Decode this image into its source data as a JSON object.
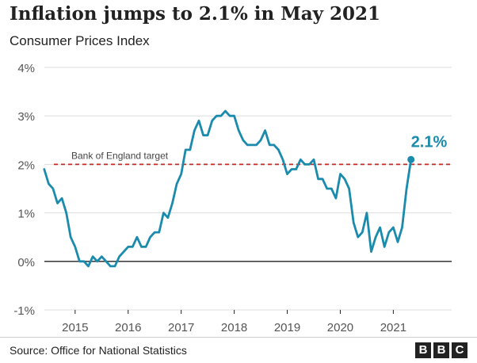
{
  "header": {
    "title": "Inflation jumps to 2.1% in May 2021",
    "subtitle": "Consumer Prices Index"
  },
  "footer": {
    "source": "Source: Office for National Statistics",
    "logo_letters": [
      "B",
      "B",
      "C"
    ]
  },
  "colors": {
    "line": "#1a8bac",
    "target": "#c62828",
    "grid": "#dddddd",
    "axis": "#222222",
    "text": "#222222",
    "tick_text": "#555555"
  },
  "chart_data": {
    "type": "line",
    "title": "Inflation jumps to 2.1% in May 2021",
    "subtitle": "Consumer Prices Index",
    "xlabel": "",
    "ylabel": "",
    "ylim": [
      -1,
      4
    ],
    "xlim": [
      2014.42,
      2022.1
    ],
    "grid": true,
    "yticks": [
      -1,
      0,
      1,
      2,
      3,
      4
    ],
    "ytick_labels": [
      "-1%",
      "0%",
      "1%",
      "2%",
      "3%",
      "4%"
    ],
    "xticks": [
      2015,
      2016,
      2017,
      2018,
      2019,
      2020,
      2021
    ],
    "xtick_labels": [
      "2015",
      "2016",
      "2017",
      "2018",
      "2019",
      "2020",
      "2021"
    ],
    "reference_line": {
      "y": 2,
      "label": "Bank of England target",
      "style": "dashed"
    },
    "end_label": "2.1%",
    "series": [
      {
        "x": [
          "2014-06",
          "2014-07",
          "2014-08",
          "2014-09",
          "2014-10",
          "2014-11",
          "2014-12",
          "2015-01",
          "2015-02",
          "2015-03",
          "2015-04",
          "2015-05",
          "2015-06",
          "2015-07",
          "2015-08",
          "2015-09",
          "2015-10",
          "2015-11",
          "2015-12",
          "2016-01",
          "2016-02",
          "2016-03",
          "2016-04",
          "2016-05",
          "2016-06",
          "2016-07",
          "2016-08",
          "2016-09",
          "2016-10",
          "2016-11",
          "2016-12",
          "2017-01",
          "2017-02",
          "2017-03",
          "2017-04",
          "2017-05",
          "2017-06",
          "2017-07",
          "2017-08",
          "2017-09",
          "2017-10",
          "2017-11",
          "2017-12",
          "2018-01",
          "2018-02",
          "2018-03",
          "2018-04",
          "2018-05",
          "2018-06",
          "2018-07",
          "2018-08",
          "2018-09",
          "2018-10",
          "2018-11",
          "2018-12",
          "2019-01",
          "2019-02",
          "2019-03",
          "2019-04",
          "2019-05",
          "2019-06",
          "2019-07",
          "2019-08",
          "2019-09",
          "2019-10",
          "2019-11",
          "2019-12",
          "2020-01",
          "2020-02",
          "2020-03",
          "2020-04",
          "2020-05",
          "2020-06",
          "2020-07",
          "2020-08",
          "2020-09",
          "2020-10",
          "2020-11",
          "2020-12",
          "2021-01",
          "2021-02",
          "2021-03",
          "2021-04",
          "2021-05"
        ],
        "values": [
          1.9,
          1.6,
          1.5,
          1.2,
          1.3,
          1.0,
          0.5,
          0.3,
          0.0,
          0.0,
          -0.1,
          0.1,
          0.0,
          0.1,
          0.0,
          -0.1,
          -0.1,
          0.1,
          0.2,
          0.3,
          0.3,
          0.5,
          0.3,
          0.3,
          0.5,
          0.6,
          0.6,
          1.0,
          0.9,
          1.2,
          1.6,
          1.8,
          2.3,
          2.3,
          2.7,
          2.9,
          2.6,
          2.6,
          2.9,
          3.0,
          3.0,
          3.1,
          3.0,
          3.0,
          2.7,
          2.5,
          2.4,
          2.4,
          2.4,
          2.5,
          2.7,
          2.4,
          2.4,
          2.3,
          2.1,
          1.8,
          1.9,
          1.9,
          2.1,
          2.0,
          2.0,
          2.1,
          1.7,
          1.7,
          1.5,
          1.5,
          1.3,
          1.8,
          1.7,
          1.5,
          0.8,
          0.5,
          0.6,
          1.0,
          0.2,
          0.5,
          0.7,
          0.3,
          0.6,
          0.7,
          0.4,
          0.7,
          1.5,
          2.1
        ]
      }
    ]
  }
}
